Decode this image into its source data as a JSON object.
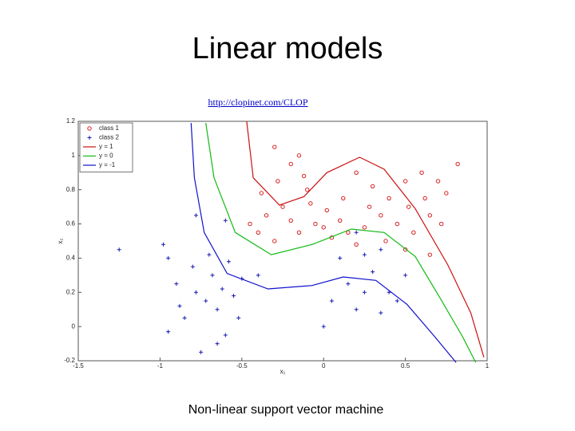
{
  "title": "Linear models",
  "link": "http://clopinet.com/CLOP",
  "caption": "Non-linear support vector machine",
  "chart_data": {
    "type": "scatter",
    "xlabel": "x₁",
    "ylabel": "x₂",
    "xlim": [
      -1.5,
      1
    ],
    "ylim": [
      -0.2,
      1.2
    ],
    "xticks": [
      -1.5,
      -1,
      -0.5,
      0,
      0.5,
      1
    ],
    "yticks": [
      -0.2,
      0,
      0.2,
      0.4,
      0.6,
      0.8,
      1,
      1.2
    ],
    "legend": "upper-left",
    "series": [
      {
        "name": "class 1",
        "color": "#d62020",
        "marker": "o",
        "x": [
          -0.45,
          -0.4,
          -0.35,
          -0.3,
          -0.25,
          -0.2,
          -0.15,
          -0.1,
          -0.2,
          -0.28,
          -0.15,
          -0.3,
          -0.08,
          -0.05,
          0.02,
          0.05,
          0.1,
          0.12,
          0.15,
          0.2,
          0.25,
          0.28,
          0.3,
          0.35,
          0.38,
          0.4,
          0.45,
          0.5,
          0.52,
          0.55,
          0.6,
          0.62,
          0.65,
          0.7,
          0.72,
          0.75,
          0.82,
          0,
          -0.38,
          0.2,
          0.65,
          0.5,
          -0.12
        ],
        "y": [
          0.6,
          0.55,
          0.65,
          0.5,
          0.7,
          0.62,
          0.55,
          0.8,
          0.95,
          0.85,
          1,
          1.05,
          0.72,
          0.6,
          0.68,
          0.52,
          0.62,
          0.75,
          0.55,
          0.48,
          0.58,
          0.7,
          0.82,
          0.65,
          0.5,
          0.75,
          0.6,
          0.85,
          0.7,
          0.55,
          0.9,
          0.75,
          0.65,
          0.85,
          0.6,
          0.78,
          0.95,
          0.58,
          0.78,
          0.9,
          0.42,
          0.45,
          0.88
        ]
      },
      {
        "name": "class 2",
        "color": "#1a1ab0",
        "marker": "+",
        "x": [
          -0.98,
          -0.95,
          -0.9,
          -0.88,
          -0.85,
          -0.8,
          -0.78,
          -0.75,
          -0.72,
          -0.7,
          -0.68,
          -0.65,
          -0.62,
          -0.6,
          -0.58,
          -0.55,
          -0.52,
          -0.5,
          -0.6,
          -0.78,
          -0.95,
          -0.4,
          -0.65,
          0.05,
          0.1,
          0.15,
          0.2,
          0.25,
          0.3,
          0.35,
          0.4,
          0.45,
          0.5,
          0,
          -1.25,
          0.25,
          0.2,
          0.35
        ],
        "y": [
          0.48,
          0.4,
          0.25,
          0.12,
          0.05,
          0.35,
          0.2,
          -0.15,
          0.15,
          0.42,
          0.3,
          0.1,
          0.22,
          -0.05,
          0.38,
          0.18,
          0.05,
          0.28,
          0.62,
          0.65,
          -0.03,
          0.3,
          -0.1,
          0.15,
          0.4,
          0.25,
          0.1,
          0.2,
          0.32,
          0.08,
          0.2,
          0.15,
          0.3,
          0,
          0.45,
          0.42,
          0.55,
          0.45
        ]
      },
      {
        "name": "y = 1",
        "color": "#cc1111",
        "marker": "line",
        "x": [
          -0.47,
          -0.43,
          -0.27,
          -0.12,
          0.02,
          0.22,
          0.37,
          0.56,
          0.76,
          0.9,
          0.98
        ],
        "y": [
          1.2,
          0.87,
          0.71,
          0.76,
          0.9,
          0.99,
          0.92,
          0.69,
          0.36,
          0.08,
          -0.18
        ]
      },
      {
        "name": "y = 0",
        "color": "#11bb11",
        "marker": "line",
        "x": [
          -0.72,
          -0.67,
          -0.54,
          -0.32,
          -0.07,
          0.17,
          0.37,
          0.56,
          0.71,
          0.85,
          0.93
        ],
        "y": [
          1.19,
          0.87,
          0.55,
          0.42,
          0.48,
          0.57,
          0.55,
          0.41,
          0.17,
          -0.06,
          -0.21
        ]
      },
      {
        "name": "y = -1",
        "color": "#1111cc",
        "marker": "line",
        "x": [
          -0.81,
          -0.79,
          -0.73,
          -0.59,
          -0.34,
          -0.07,
          0.12,
          0.32,
          0.51,
          0.68,
          0.81
        ],
        "y": [
          1.19,
          0.87,
          0.55,
          0.31,
          0.22,
          0.24,
          0.29,
          0.27,
          0.13,
          -0.06,
          -0.21
        ]
      }
    ]
  }
}
